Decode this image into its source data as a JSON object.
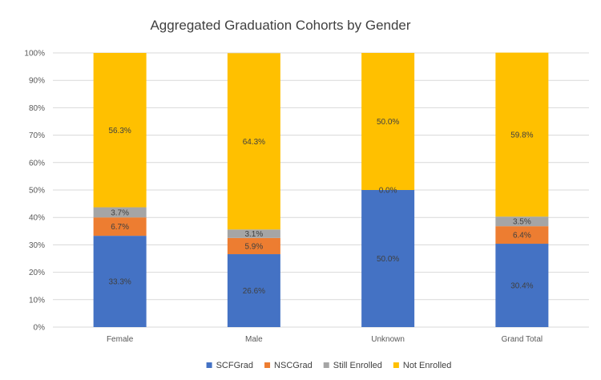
{
  "chart_data": {
    "type": "bar",
    "stacked": true,
    "percent": true,
    "title": "Aggregated Graduation Cohorts by Gender",
    "xlabel": "",
    "ylabel": "",
    "ylim": [
      0,
      100
    ],
    "yticks": [
      "0%",
      "10%",
      "20%",
      "30%",
      "40%",
      "50%",
      "60%",
      "70%",
      "80%",
      "90%",
      "100%"
    ],
    "grid": true,
    "legend_position": "bottom",
    "categories": [
      "Female",
      "Male",
      "Unknown",
      "Grand Total"
    ],
    "series": [
      {
        "name": "SCFGrad",
        "color": "#4472c4",
        "values": [
          33.3,
          26.6,
          50.0,
          30.4
        ],
        "labels": [
          "33.3%",
          "26.6%",
          "50.0%",
          "30.4%"
        ]
      },
      {
        "name": "NSCGrad",
        "color": "#ed7d31",
        "values": [
          6.7,
          5.9,
          0.0,
          6.4
        ],
        "labels": [
          "6.7%",
          "5.9%",
          "",
          "6.4%"
        ]
      },
      {
        "name": "Still Enrolled",
        "color": "#a5a5a5",
        "values": [
          3.7,
          3.1,
          0.0,
          3.5
        ],
        "labels": [
          "3.7%",
          "3.1%",
          "0.0%",
          "3.5%"
        ]
      },
      {
        "name": "Not Enrolled",
        "color": "#ffc000",
        "values": [
          56.3,
          64.3,
          50.0,
          59.8
        ],
        "labels": [
          "56.3%",
          "64.3%",
          "50.0%",
          "59.8%"
        ]
      }
    ]
  }
}
